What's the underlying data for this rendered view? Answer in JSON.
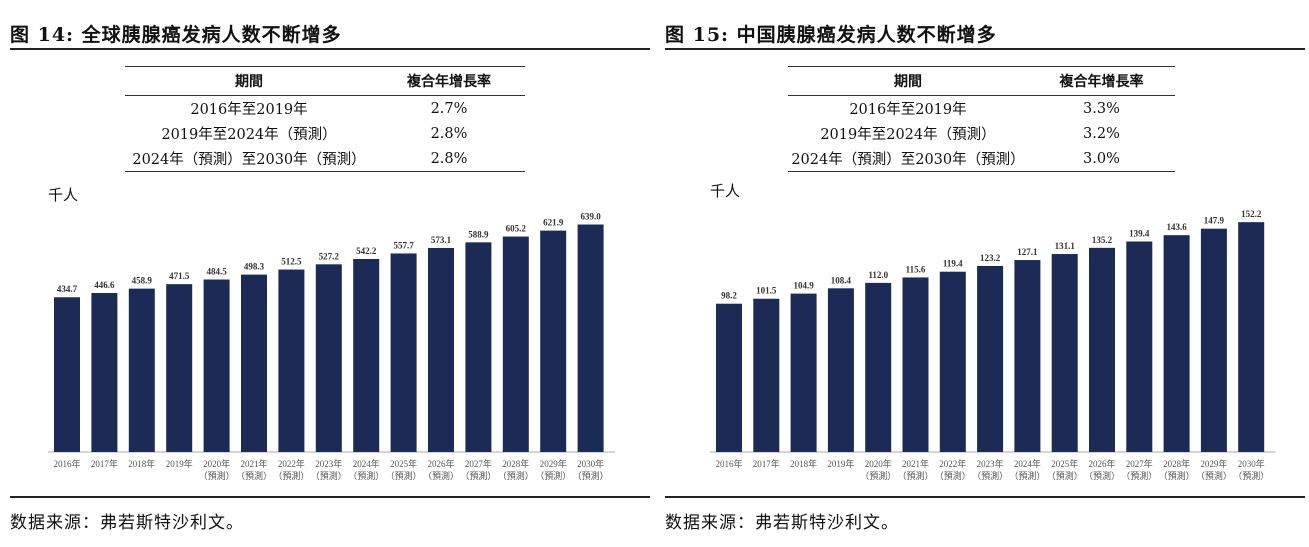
{
  "panels": [
    {
      "title": "图 14:  全球胰腺癌发病人数不断增多",
      "table": {
        "headers": [
          "期間",
          "複合年增長率"
        ],
        "rows": [
          [
            "2016年至2019年",
            "2.7%"
          ],
          [
            "2019年至2024年（預測）",
            "2.8%"
          ],
          [
            "2024年（預測）至2030年（預測）",
            "2.8%"
          ]
        ]
      },
      "unit": "千人",
      "source": "数据来源：弗若斯特沙利文。"
    },
    {
      "title": "图 15:  中国胰腺癌发病人数不断增多",
      "table": {
        "headers": [
          "期間",
          "複合年增長率"
        ],
        "rows": [
          [
            "2016年至2019年",
            "3.3%"
          ],
          [
            "2019年至2024年（預測）",
            "3.2%"
          ],
          [
            "2024年（預測）至2030年（預測）",
            "3.0%"
          ]
        ]
      },
      "unit": "千人",
      "source": "数据来源：弗若斯特沙利文。"
    }
  ],
  "chart_data": [
    {
      "type": "bar",
      "title": "全球胰腺癌发病人数不断增多",
      "ylabel": "千人",
      "color": "#1c2b55",
      "categories": [
        "2016年",
        "2017年",
        "2018年",
        "2019年",
        "2020年",
        "2021年",
        "2022年",
        "2023年",
        "2024年",
        "2025年",
        "2026年",
        "2027年",
        "2028年",
        "2029年",
        "2030年"
      ],
      "forecast_note": "（預測）",
      "forecast_from": 4,
      "values": [
        434.7,
        446.6,
        458.9,
        471.5,
        484.5,
        498.3,
        512.5,
        527.2,
        542.2,
        557.7,
        573.1,
        588.9,
        605.2,
        621.9,
        639.0
      ]
    },
    {
      "type": "bar",
      "title": "中国胰腺癌发病人数不断增多",
      "ylabel": "千人",
      "color": "#1c2b55",
      "categories": [
        "2016年",
        "2017年",
        "2018年",
        "2019年",
        "2020年",
        "2021年",
        "2022年",
        "2023年",
        "2024年",
        "2025年",
        "2026年",
        "2027年",
        "2028年",
        "2029年",
        "2030年"
      ],
      "forecast_note": "（預測）",
      "forecast_from": 4,
      "values": [
        98.2,
        101.5,
        104.9,
        108.4,
        112.0,
        115.6,
        119.4,
        123.2,
        127.1,
        131.1,
        135.2,
        139.4,
        143.6,
        147.9,
        152.2
      ]
    }
  ]
}
